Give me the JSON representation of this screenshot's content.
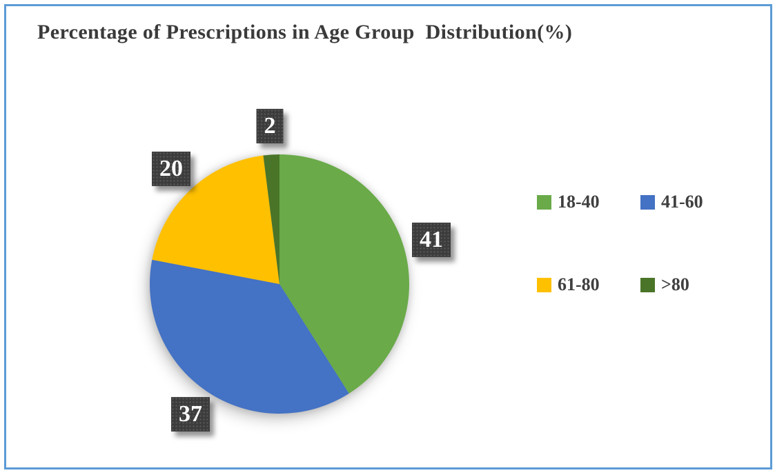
{
  "frame": {
    "border_color": "#5B9BD5",
    "background_color": "#FFFFFF"
  },
  "title": "Percentage of Prescriptions in Age Group  Distribution(%)",
  "chart_data": {
    "type": "pie",
    "title": "Percentage of Prescriptions in Age Group  Distribution(%)",
    "categories": [
      "18-40",
      "41-60",
      "61-80",
      ">80"
    ],
    "values": [
      41,
      37,
      20,
      2
    ],
    "unit": "%",
    "colors": [
      "#6AAA49",
      "#4472C4",
      "#FFC000",
      "#4A7528"
    ],
    "start_angle_deg": 0,
    "direction": "clockwise",
    "legend_position": "right",
    "data_labels_shown": true,
    "data_label_box_color": "#3C3C3C",
    "data_label_text_color": "#FFFFFF"
  },
  "legend": {
    "items": [
      {
        "label": "18-40",
        "color": "#6AAA49"
      },
      {
        "label": "41-60",
        "color": "#4472C4"
      },
      {
        "label": "61-80",
        "color": "#FFC000"
      },
      {
        "label": ">80",
        "color": "#4A7528"
      }
    ]
  }
}
